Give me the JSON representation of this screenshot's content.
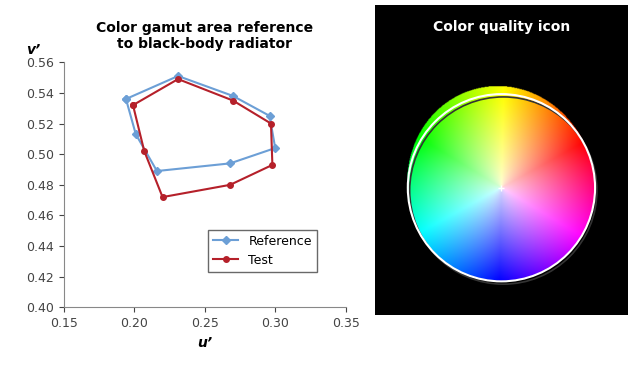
{
  "chart_data": [
    {
      "type": "line",
      "title": "Color gamut area reference\nto black-body radiator",
      "x_label": "u’",
      "y_label": "v’",
      "xlim": [
        0.15,
        0.35
      ],
      "xticks": [
        {
          "value": 0.15,
          "label": "0.15"
        },
        {
          "value": 0.2,
          "label": "0.20"
        },
        {
          "value": 0.25,
          "label": "0.25"
        },
        {
          "value": 0.3,
          "label": "0.30"
        },
        {
          "value": 0.35,
          "label": "0.35"
        }
      ],
      "ylim": [
        0.4,
        0.56
      ],
      "yticks": [
        {
          "value": 0.4,
          "label": "0.40"
        },
        {
          "value": 0.42,
          "label": "0.42"
        },
        {
          "value": 0.44,
          "label": "0.44"
        },
        {
          "value": 0.46,
          "label": "0.46"
        },
        {
          "value": 0.48,
          "label": "0.48"
        },
        {
          "value": 0.5,
          "label": "0.50"
        },
        {
          "value": 0.52,
          "label": "0.52"
        },
        {
          "value": 0.54,
          "label": "0.54"
        },
        {
          "value": 0.56,
          "label": "0.56"
        }
      ],
      "legend": "lower right",
      "series": [
        {
          "name": "Reference",
          "color": "#6c9fd6",
          "marker": "diamond",
          "line_style": "solid",
          "x": [
            0.194,
            0.231,
            0.27,
            0.296,
            0.3,
            0.268,
            0.216,
            0.201
          ],
          "values": [
            0.536,
            0.551,
            0.538,
            0.525,
            0.504,
            0.494,
            0.489,
            0.513
          ]
        },
        {
          "name": "Test",
          "color": "#b5202a",
          "marker": "circle",
          "line_style": "solid",
          "x": [
            0.199,
            0.231,
            0.27,
            0.297,
            0.298,
            0.268,
            0.22,
            0.207
          ],
          "values": [
            0.532,
            0.549,
            0.535,
            0.52,
            0.493,
            0.48,
            0.472,
            0.502
          ]
        }
      ]
    },
    {
      "type": "color_wheel",
      "title": "Color quality icon"
    }
  ]
}
